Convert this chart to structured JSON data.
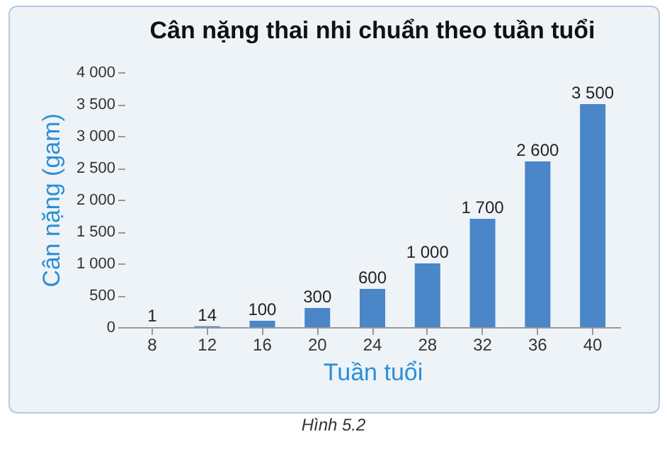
{
  "chart_data": {
    "type": "bar",
    "title": "Cân nặng thai nhi chuẩn theo tuần tuổi",
    "xlabel": "Tuần tuổi",
    "ylabel": "Cân nặng (gam)",
    "categories": [
      "8",
      "12",
      "16",
      "20",
      "24",
      "28",
      "32",
      "36",
      "40"
    ],
    "values": [
      1,
      14,
      100,
      300,
      600,
      1000,
      1700,
      2600,
      3500
    ],
    "value_labels": [
      "1",
      "14",
      "100",
      "300",
      "600",
      "1 000",
      "1 700",
      "2 600",
      "3 500"
    ],
    "color": "#4a86c8",
    "ylim": [
      0,
      4000
    ],
    "yticks": [
      0,
      500,
      {
        "value": 1000,
        "label": "1 000"
      },
      {
        "value": 1500,
        "label": "1 500"
      },
      {
        "value": 2000,
        "label": "2 000"
      },
      {
        "value": 2500,
        "label": "2 500"
      },
      {
        "value": 3000,
        "label": "3 000"
      },
      {
        "value": 3500,
        "label": "3 500"
      },
      {
        "value": 4000,
        "label": "4 000"
      }
    ],
    "annotations": [
      "Hình 5.2"
    ]
  }
}
